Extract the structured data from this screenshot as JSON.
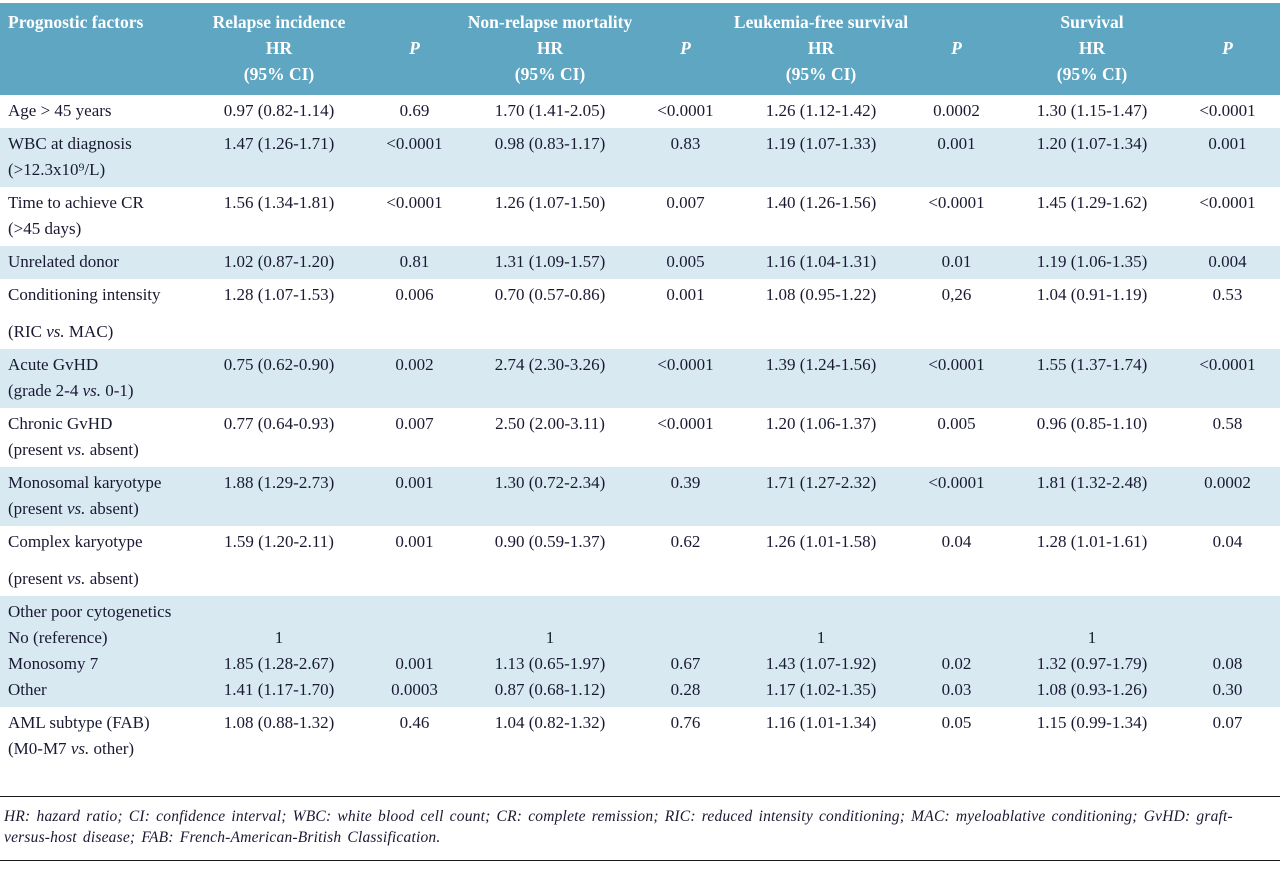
{
  "colors": {
    "header_bg": "#5fa6c2",
    "row_shade": "#d8e9f2",
    "text": "#191932",
    "header_text": "#ffffff",
    "rule": "#1a1a1a"
  },
  "header": {
    "factor_label": "Prognostic factors",
    "groups": [
      {
        "title": "Relapse incidence",
        "hr": "HR",
        "ci": "(95% CI)",
        "p": "P"
      },
      {
        "title": "Non-relapse mortality",
        "hr": "HR",
        "ci": "(95% CI)",
        "p": "P"
      },
      {
        "title": "Leukemia-free survival",
        "hr": "HR",
        "ci": "(95% CI)",
        "p": "P"
      },
      {
        "title": "Survival",
        "hr": "HR",
        "ci": "(95% CI)",
        "p": "P"
      }
    ]
  },
  "table": {
    "rows": [
      {
        "shade": false,
        "lines": [
          [
            "Age > 45 years",
            "0.97 (0.82-1.14)",
            "0.69",
            "1.70 (1.41-2.05)",
            "<0.0001",
            "1.26 (1.12-1.42)",
            "0.0002",
            "1.30 (1.15-1.47)",
            "<0.0001"
          ]
        ]
      },
      {
        "shade": true,
        "lines": [
          [
            "WBC at diagnosis",
            "1.47 (1.26-1.71)",
            "<0.0001",
            "0.98 (0.83-1.17)",
            "0.83",
            "1.19 (1.07-1.33)",
            "0.001",
            "1.20 (1.07-1.34)",
            "0.001"
          ],
          [
            "(>12.3x10⁹/L)",
            "",
            "",
            "",
            "",
            "",
            "",
            "",
            ""
          ]
        ]
      },
      {
        "shade": false,
        "lines": [
          [
            "Time to achieve CR",
            "1.56 (1.34-1.81)",
            "<0.0001",
            "1.26 (1.07-1.50)",
            "0.007",
            "1.40 (1.26-1.56)",
            "<0.0001",
            "1.45 (1.29-1.62)",
            "<0.0001"
          ],
          [
            "(>45 days)",
            "",
            "",
            "",
            "",
            "",
            "",
            "",
            ""
          ]
        ]
      },
      {
        "shade": true,
        "lines": [
          [
            "Unrelated donor",
            "1.02 (0.87-1.20)",
            "0.81",
            "1.31 (1.09-1.57)",
            "0.005",
            "1.16 (1.04-1.31)",
            "0.01",
            "1.19 (1.06-1.35)",
            "0.004"
          ]
        ]
      },
      {
        "shade": false,
        "lines": [
          [
            "Conditioning intensity",
            "1.28 (1.07-1.53)",
            "0.006",
            "0.70 (0.57-0.86)",
            "0.001",
            "1.08 (0.95-1.22)",
            "0,26",
            "1.04 (0.91-1.19)",
            "0.53"
          ],
          [
            "",
            "",
            "",
            "",
            "",
            "",
            "",
            "",
            ""
          ],
          [
            "(RIC vs. MAC)",
            "",
            "",
            "",
            "",
            "",
            "",
            "",
            ""
          ]
        ]
      },
      {
        "shade": true,
        "lines": [
          [
            "Acute GvHD",
            "0.75 (0.62-0.90)",
            "0.002",
            "2.74 (2.30-3.26)",
            "<0.0001",
            "1.39 (1.24-1.56)",
            "<0.0001",
            "1.55 (1.37-1.74)",
            "<0.0001"
          ],
          [
            "(grade 2-4 vs. 0-1)",
            "",
            "",
            "",
            "",
            "",
            "",
            "",
            ""
          ]
        ]
      },
      {
        "shade": false,
        "lines": [
          [
            "Chronic GvHD",
            "0.77 (0.64-0.93)",
            "0.007",
            "2.50 (2.00-3.11)",
            "<0.0001",
            "1.20 (1.06-1.37)",
            "0.005",
            "0.96 (0.85-1.10)",
            "0.58"
          ],
          [
            "(present vs. absent)",
            "",
            "",
            "",
            "",
            "",
            "",
            "",
            ""
          ]
        ]
      },
      {
        "shade": true,
        "lines": [
          [
            "Monosomal karyotype",
            "1.88 (1.29-2.73)",
            "0.001",
            "1.30 (0.72-2.34)",
            "0.39",
            "1.71 (1.27-2.32)",
            "<0.0001",
            "1.81 (1.32-2.48)",
            "0.0002"
          ],
          [
            "(present vs. absent)",
            "",
            "",
            "",
            "",
            "",
            "",
            "",
            ""
          ]
        ]
      },
      {
        "shade": false,
        "lines": [
          [
            "Complex karyotype",
            "1.59 (1.20-2.11)",
            "0.001",
            "0.90 (0.59-1.37)",
            "0.62",
            "1.26 (1.01-1.58)",
            "0.04",
            "1.28 (1.01-1.61)",
            "0.04"
          ],
          [
            "",
            "",
            "",
            "",
            "",
            "",
            "",
            "",
            ""
          ],
          [
            "(present vs. absent)",
            "",
            "",
            "",
            "",
            "",
            "",
            "",
            ""
          ]
        ]
      },
      {
        "shade": true,
        "lines": [
          [
            "Other poor cytogenetics",
            "",
            "",
            "",
            "",
            "",
            "",
            "",
            ""
          ],
          [
            "No (reference)",
            "1",
            "",
            "1",
            "",
            "1",
            "",
            "1",
            ""
          ],
          [
            "Monosomy 7",
            "1.85 (1.28-2.67)",
            "0.001",
            "1.13 (0.65-1.97)",
            "0.67",
            "1.43 (1.07-1.92)",
            "0.02",
            "1.32 (0.97-1.79)",
            "0.08"
          ],
          [
            "Other",
            "1.41 (1.17-1.70)",
            "0.0003",
            "0.87 (0.68-1.12)",
            "0.28",
            "1.17 (1.02-1.35)",
            "0.03",
            "1.08 (0.93-1.26)",
            "0.30"
          ]
        ]
      },
      {
        "shade": false,
        "lines": [
          [
            "AML subtype (FAB)",
            "1.08 (0.88-1.32)",
            "0.46",
            "1.04 (0.82-1.32)",
            "0.76",
            "1.16 (1.01-1.34)",
            "0.05",
            "1.15 (0.99-1.34)",
            "0.07"
          ],
          [
            "(M0-M7 vs. other)",
            "",
            "",
            "",
            "",
            "",
            "",
            "",
            ""
          ]
        ]
      }
    ]
  },
  "footnote": "HR: hazard ratio; CI: confidence interval; WBC: white blood cell count; CR: complete remission; RIC: reduced intensity conditioning; MAC: myeloablative conditioning; GvHD: graft-versus-host disease; FAB: French-American-British Classification."
}
